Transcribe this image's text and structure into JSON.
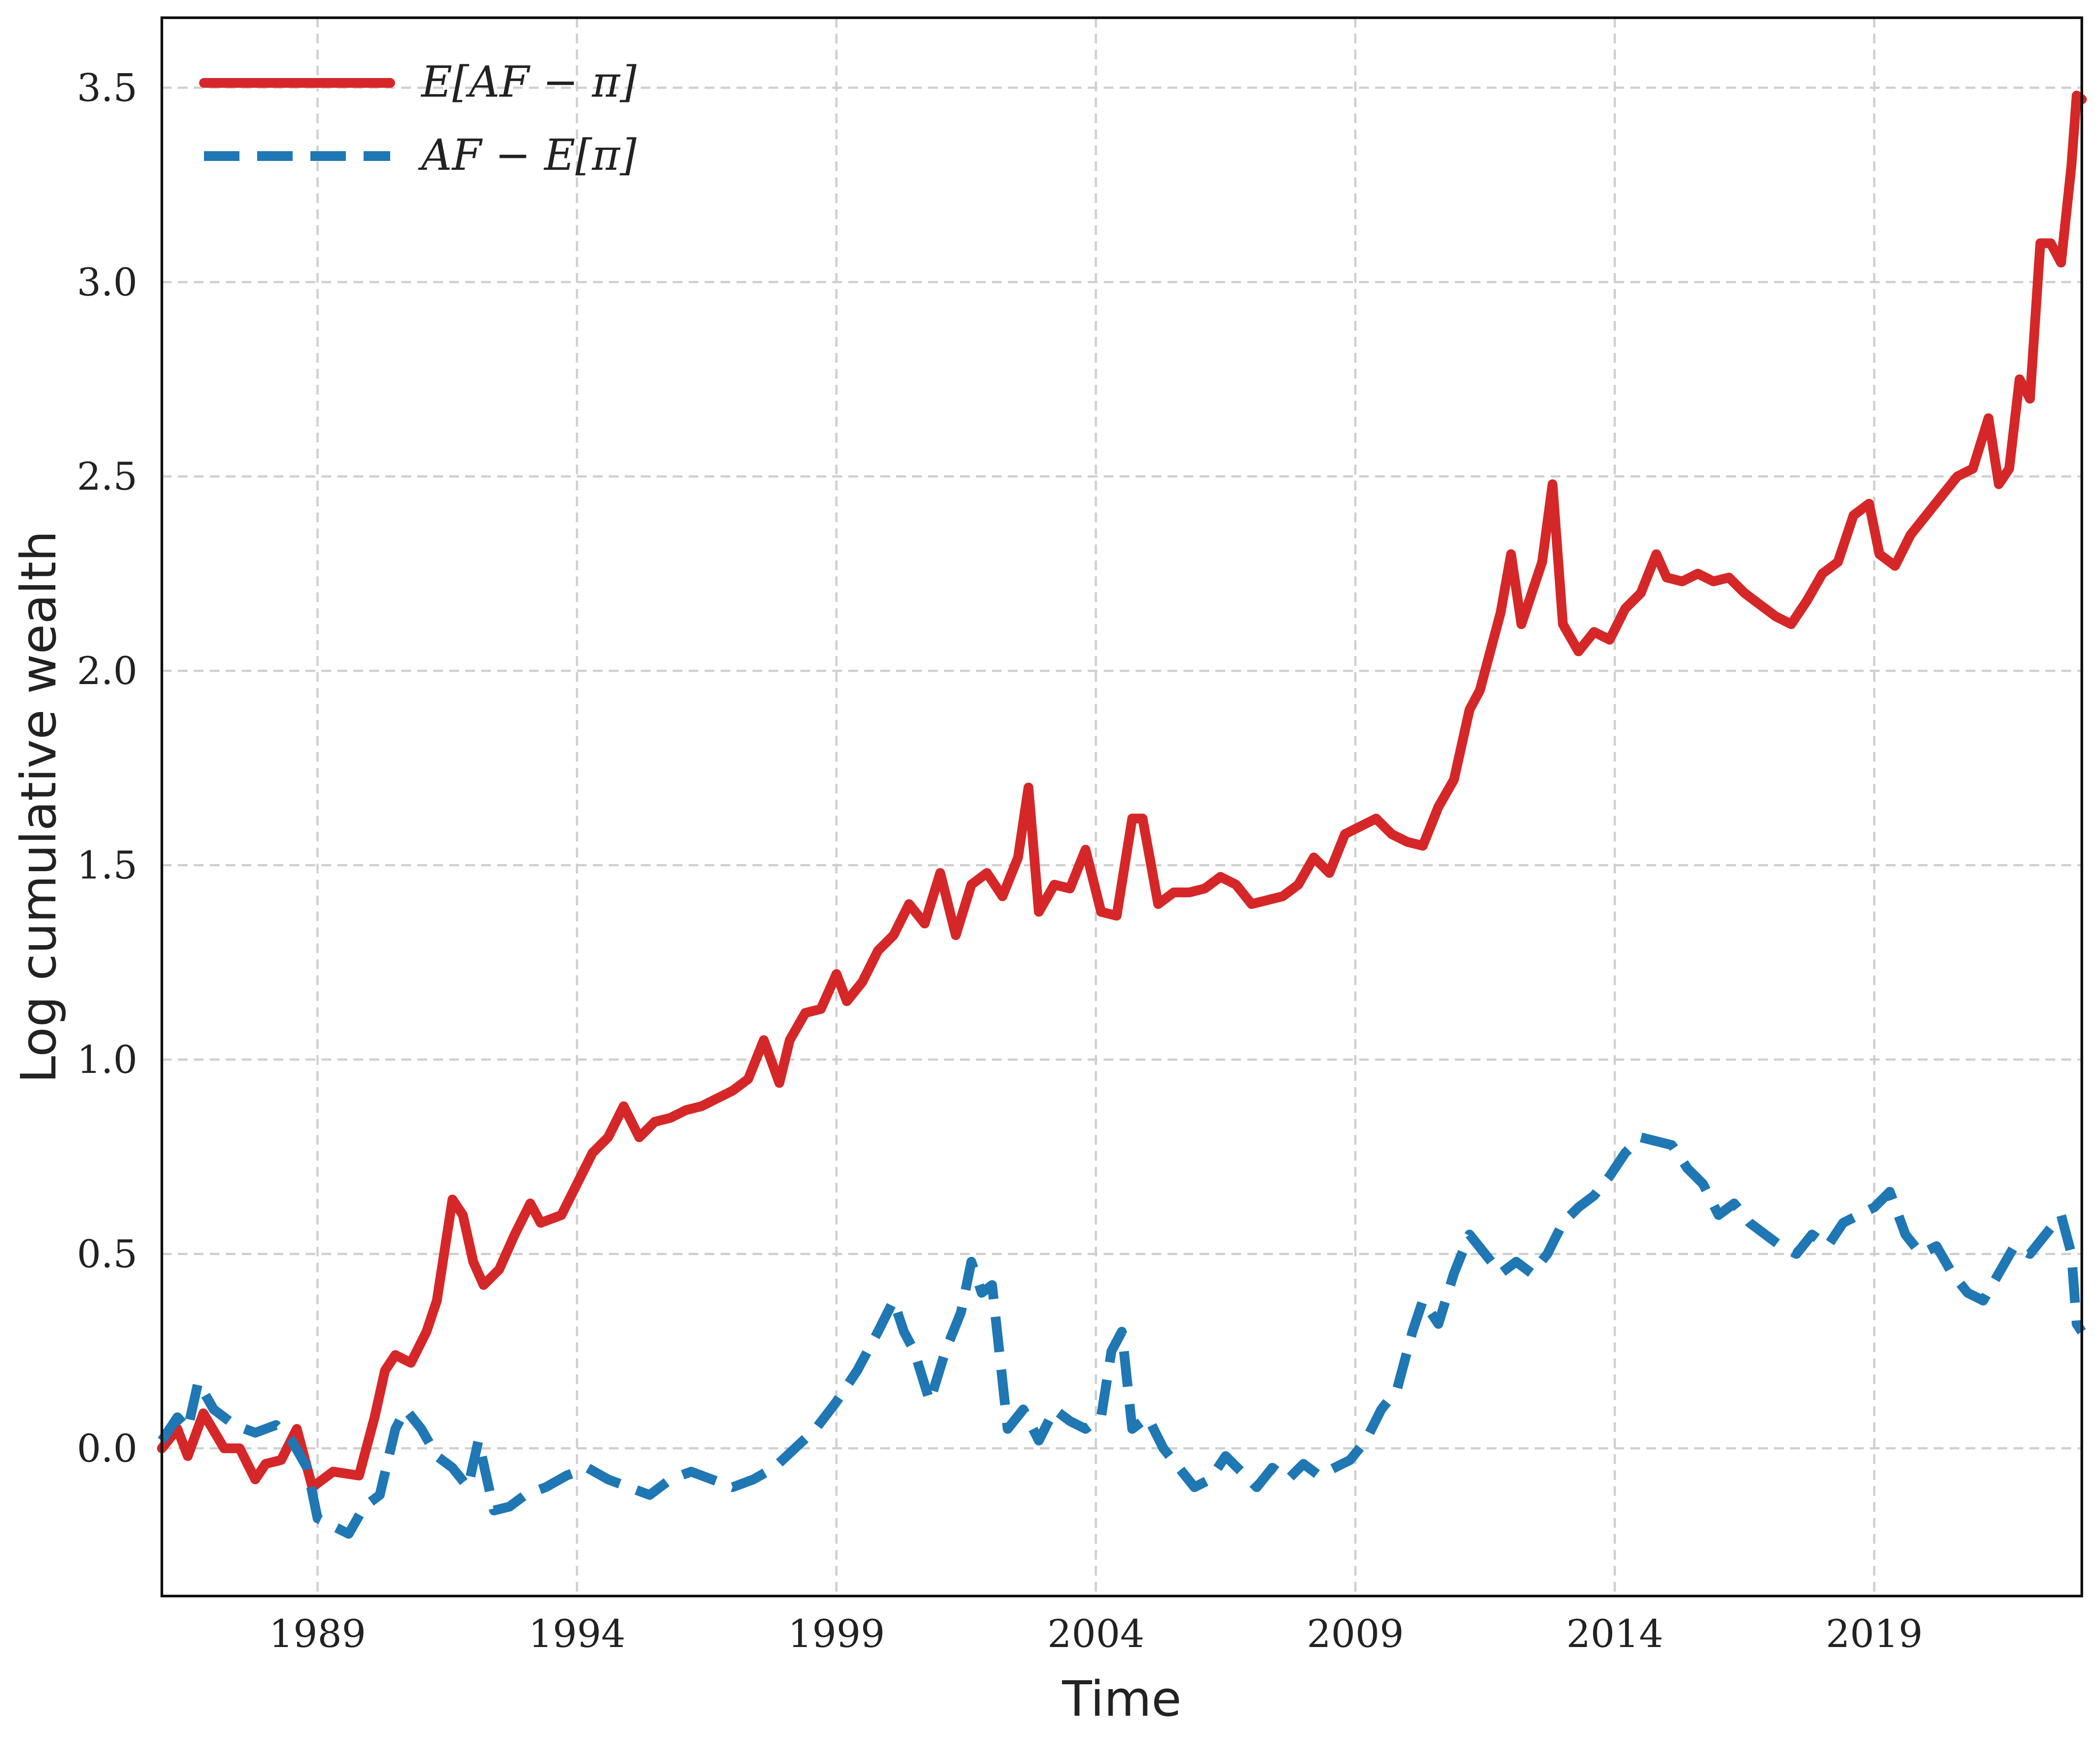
{
  "chart_data": {
    "type": "line",
    "xlabel": "Time",
    "ylabel": "Log cumulative wealth",
    "xlim": [
      1986.0,
      2023.0
    ],
    "ylim": [
      -0.38,
      3.68
    ],
    "x_ticks": [
      1989,
      1994,
      1999,
      2004,
      2009,
      2014,
      2019
    ],
    "y_ticks": [
      0.0,
      0.5,
      1.0,
      1.5,
      2.0,
      2.5,
      3.0,
      3.5
    ],
    "y_tick_labels": [
      "0.0",
      "0.5",
      "1.0",
      "1.5",
      "2.0",
      "2.5",
      "3.0",
      "3.5"
    ],
    "grid": true,
    "legend_position": "top-left",
    "series": [
      {
        "name": "E[AF − π]",
        "color": "#d62728",
        "style": "solid",
        "points": [
          [
            1986.0,
            0.0
          ],
          [
            1986.3,
            0.05
          ],
          [
            1986.5,
            -0.02
          ],
          [
            1986.8,
            0.09
          ],
          [
            1987.2,
            0.0
          ],
          [
            1987.5,
            0.0
          ],
          [
            1987.8,
            -0.08
          ],
          [
            1988.0,
            -0.04
          ],
          [
            1988.3,
            -0.03
          ],
          [
            1988.6,
            0.05
          ],
          [
            1988.9,
            -0.1
          ],
          [
            1989.3,
            -0.06
          ],
          [
            1989.8,
            -0.07
          ],
          [
            1990.1,
            0.08
          ],
          [
            1990.3,
            0.2
          ],
          [
            1990.5,
            0.24
          ],
          [
            1990.8,
            0.22
          ],
          [
            1991.1,
            0.3
          ],
          [
            1991.3,
            0.38
          ],
          [
            1991.6,
            0.64
          ],
          [
            1991.8,
            0.6
          ],
          [
            1992.0,
            0.48
          ],
          [
            1992.2,
            0.42
          ],
          [
            1992.5,
            0.46
          ],
          [
            1992.8,
            0.55
          ],
          [
            1993.1,
            0.63
          ],
          [
            1993.3,
            0.58
          ],
          [
            1993.7,
            0.6
          ],
          [
            1994.0,
            0.68
          ],
          [
            1994.3,
            0.76
          ],
          [
            1994.6,
            0.8
          ],
          [
            1994.9,
            0.88
          ],
          [
            1995.2,
            0.8
          ],
          [
            1995.5,
            0.84
          ],
          [
            1995.8,
            0.85
          ],
          [
            1996.1,
            0.87
          ],
          [
            1996.4,
            0.88
          ],
          [
            1996.7,
            0.9
          ],
          [
            1997.0,
            0.92
          ],
          [
            1997.3,
            0.95
          ],
          [
            1997.6,
            1.05
          ],
          [
            1997.9,
            0.94
          ],
          [
            1998.1,
            1.05
          ],
          [
            1998.4,
            1.12
          ],
          [
            1998.7,
            1.13
          ],
          [
            1999.0,
            1.22
          ],
          [
            1999.2,
            1.15
          ],
          [
            1999.5,
            1.2
          ],
          [
            1999.8,
            1.28
          ],
          [
            2000.1,
            1.32
          ],
          [
            2000.4,
            1.4
          ],
          [
            2000.7,
            1.35
          ],
          [
            2001.0,
            1.48
          ],
          [
            2001.3,
            1.32
          ],
          [
            2001.6,
            1.45
          ],
          [
            2001.9,
            1.48
          ],
          [
            2002.2,
            1.42
          ],
          [
            2002.5,
            1.52
          ],
          [
            2002.7,
            1.7
          ],
          [
            2002.9,
            1.38
          ],
          [
            2003.2,
            1.45
          ],
          [
            2003.5,
            1.44
          ],
          [
            2003.8,
            1.54
          ],
          [
            2004.1,
            1.38
          ],
          [
            2004.4,
            1.37
          ],
          [
            2004.7,
            1.62
          ],
          [
            2004.9,
            1.62
          ],
          [
            2005.2,
            1.4
          ],
          [
            2005.5,
            1.43
          ],
          [
            2005.8,
            1.43
          ],
          [
            2006.1,
            1.44
          ],
          [
            2006.4,
            1.47
          ],
          [
            2006.7,
            1.45
          ],
          [
            2007.0,
            1.4
          ],
          [
            2007.3,
            1.41
          ],
          [
            2007.6,
            1.42
          ],
          [
            2007.9,
            1.45
          ],
          [
            2008.2,
            1.52
          ],
          [
            2008.5,
            1.48
          ],
          [
            2008.8,
            1.58
          ],
          [
            2009.1,
            1.6
          ],
          [
            2009.4,
            1.62
          ],
          [
            2009.7,
            1.58
          ],
          [
            2010.0,
            1.56
          ],
          [
            2010.3,
            1.55
          ],
          [
            2010.6,
            1.65
          ],
          [
            2010.9,
            1.72
          ],
          [
            2011.2,
            1.9
          ],
          [
            2011.4,
            1.95
          ],
          [
            2011.6,
            2.05
          ],
          [
            2011.8,
            2.15
          ],
          [
            2012.0,
            2.3
          ],
          [
            2012.2,
            2.12
          ],
          [
            2012.4,
            2.2
          ],
          [
            2012.6,
            2.28
          ],
          [
            2012.8,
            2.48
          ],
          [
            2013.0,
            2.12
          ],
          [
            2013.3,
            2.05
          ],
          [
            2013.6,
            2.1
          ],
          [
            2013.9,
            2.08
          ],
          [
            2014.2,
            2.16
          ],
          [
            2014.5,
            2.2
          ],
          [
            2014.8,
            2.3
          ],
          [
            2015.0,
            2.24
          ],
          [
            2015.3,
            2.23
          ],
          [
            2015.6,
            2.25
          ],
          [
            2015.9,
            2.23
          ],
          [
            2016.2,
            2.24
          ],
          [
            2016.5,
            2.2
          ],
          [
            2016.8,
            2.17
          ],
          [
            2017.1,
            2.14
          ],
          [
            2017.4,
            2.12
          ],
          [
            2017.7,
            2.18
          ],
          [
            2018.0,
            2.25
          ],
          [
            2018.3,
            2.28
          ],
          [
            2018.6,
            2.4
          ],
          [
            2018.9,
            2.43
          ],
          [
            2019.1,
            2.3
          ],
          [
            2019.4,
            2.27
          ],
          [
            2019.7,
            2.35
          ],
          [
            2020.0,
            2.4
          ],
          [
            2020.3,
            2.45
          ],
          [
            2020.6,
            2.5
          ],
          [
            2020.9,
            2.52
          ],
          [
            2021.2,
            2.65
          ],
          [
            2021.4,
            2.48
          ],
          [
            2021.6,
            2.52
          ],
          [
            2021.8,
            2.75
          ],
          [
            2022.0,
            2.7
          ],
          [
            2022.2,
            3.1
          ],
          [
            2022.4,
            3.1
          ],
          [
            2022.6,
            3.05
          ],
          [
            2022.8,
            3.3
          ],
          [
            2022.9,
            3.48
          ],
          [
            2023.0,
            3.47
          ]
        ]
      },
      {
        "name": "AF − E[π]",
        "color": "#1f77b4",
        "style": "dashed",
        "points": [
          [
            1986.0,
            0.02
          ],
          [
            1986.3,
            0.08
          ],
          [
            1986.5,
            0.05
          ],
          [
            1986.7,
            0.17
          ],
          [
            1987.0,
            0.1
          ],
          [
            1987.4,
            0.06
          ],
          [
            1987.8,
            0.04
          ],
          [
            1988.2,
            0.06
          ],
          [
            1988.5,
            0.02
          ],
          [
            1988.8,
            -0.05
          ],
          [
            1989.0,
            -0.18
          ],
          [
            1989.3,
            -0.2
          ],
          [
            1989.6,
            -0.22
          ],
          [
            1989.9,
            -0.15
          ],
          [
            1990.2,
            -0.12
          ],
          [
            1990.5,
            0.05
          ],
          [
            1990.7,
            0.1
          ],
          [
            1991.0,
            0.05
          ],
          [
            1991.3,
            -0.02
          ],
          [
            1991.6,
            -0.05
          ],
          [
            1991.9,
            -0.1
          ],
          [
            1992.1,
            0.02
          ],
          [
            1992.4,
            -0.16
          ],
          [
            1992.7,
            -0.15
          ],
          [
            1993.0,
            -0.12
          ],
          [
            1993.4,
            -0.1
          ],
          [
            1993.8,
            -0.07
          ],
          [
            1994.2,
            -0.05
          ],
          [
            1994.6,
            -0.08
          ],
          [
            1995.0,
            -0.1
          ],
          [
            1995.4,
            -0.12
          ],
          [
            1995.8,
            -0.08
          ],
          [
            1996.2,
            -0.06
          ],
          [
            1996.6,
            -0.08
          ],
          [
            1997.0,
            -0.1
          ],
          [
            1997.4,
            -0.08
          ],
          [
            1997.8,
            -0.05
          ],
          [
            1998.2,
            0.0
          ],
          [
            1998.6,
            0.05
          ],
          [
            1999.0,
            0.12
          ],
          [
            1999.4,
            0.2
          ],
          [
            1999.8,
            0.3
          ],
          [
            2000.1,
            0.38
          ],
          [
            2000.3,
            0.3
          ],
          [
            2000.5,
            0.25
          ],
          [
            2000.8,
            0.12
          ],
          [
            2001.1,
            0.25
          ],
          [
            2001.4,
            0.35
          ],
          [
            2001.6,
            0.48
          ],
          [
            2001.8,
            0.4
          ],
          [
            2002.0,
            0.42
          ],
          [
            2002.3,
            0.05
          ],
          [
            2002.6,
            0.1
          ],
          [
            2002.9,
            0.02
          ],
          [
            2003.2,
            0.1
          ],
          [
            2003.5,
            0.07
          ],
          [
            2003.8,
            0.05
          ],
          [
            2004.1,
            0.08
          ],
          [
            2004.3,
            0.25
          ],
          [
            2004.5,
            0.3
          ],
          [
            2004.7,
            0.05
          ],
          [
            2005.0,
            0.08
          ],
          [
            2005.3,
            0.0
          ],
          [
            2005.6,
            -0.05
          ],
          [
            2005.9,
            -0.1
          ],
          [
            2006.2,
            -0.08
          ],
          [
            2006.5,
            -0.02
          ],
          [
            2006.8,
            -0.06
          ],
          [
            2007.1,
            -0.1
          ],
          [
            2007.4,
            -0.05
          ],
          [
            2007.7,
            -0.08
          ],
          [
            2008.0,
            -0.04
          ],
          [
            2008.3,
            -0.07
          ],
          [
            2008.6,
            -0.05
          ],
          [
            2008.9,
            -0.03
          ],
          [
            2009.2,
            0.02
          ],
          [
            2009.5,
            0.1
          ],
          [
            2009.8,
            0.15
          ],
          [
            2010.1,
            0.3
          ],
          [
            2010.3,
            0.38
          ],
          [
            2010.6,
            0.32
          ],
          [
            2010.9,
            0.45
          ],
          [
            2011.2,
            0.55
          ],
          [
            2011.5,
            0.5
          ],
          [
            2011.8,
            0.45
          ],
          [
            2012.1,
            0.48
          ],
          [
            2012.4,
            0.45
          ],
          [
            2012.7,
            0.5
          ],
          [
            2013.0,
            0.58
          ],
          [
            2013.3,
            0.62
          ],
          [
            2013.6,
            0.65
          ],
          [
            2013.9,
            0.7
          ],
          [
            2014.2,
            0.76
          ],
          [
            2014.5,
            0.8
          ],
          [
            2014.8,
            0.79
          ],
          [
            2015.1,
            0.78
          ],
          [
            2015.4,
            0.72
          ],
          [
            2015.7,
            0.68
          ],
          [
            2016.0,
            0.6
          ],
          [
            2016.3,
            0.63
          ],
          [
            2016.6,
            0.58
          ],
          [
            2016.9,
            0.55
          ],
          [
            2017.2,
            0.52
          ],
          [
            2017.5,
            0.5
          ],
          [
            2017.8,
            0.55
          ],
          [
            2018.1,
            0.52
          ],
          [
            2018.4,
            0.58
          ],
          [
            2018.7,
            0.6
          ],
          [
            2019.0,
            0.62
          ],
          [
            2019.3,
            0.66
          ],
          [
            2019.6,
            0.55
          ],
          [
            2019.9,
            0.5
          ],
          [
            2020.2,
            0.52
          ],
          [
            2020.5,
            0.45
          ],
          [
            2020.8,
            0.4
          ],
          [
            2021.1,
            0.38
          ],
          [
            2021.4,
            0.45
          ],
          [
            2021.7,
            0.52
          ],
          [
            2022.0,
            0.5
          ],
          [
            2022.3,
            0.55
          ],
          [
            2022.6,
            0.6
          ],
          [
            2022.8,
            0.5
          ],
          [
            2022.9,
            0.32
          ],
          [
            2023.0,
            0.3
          ]
        ]
      }
    ]
  }
}
